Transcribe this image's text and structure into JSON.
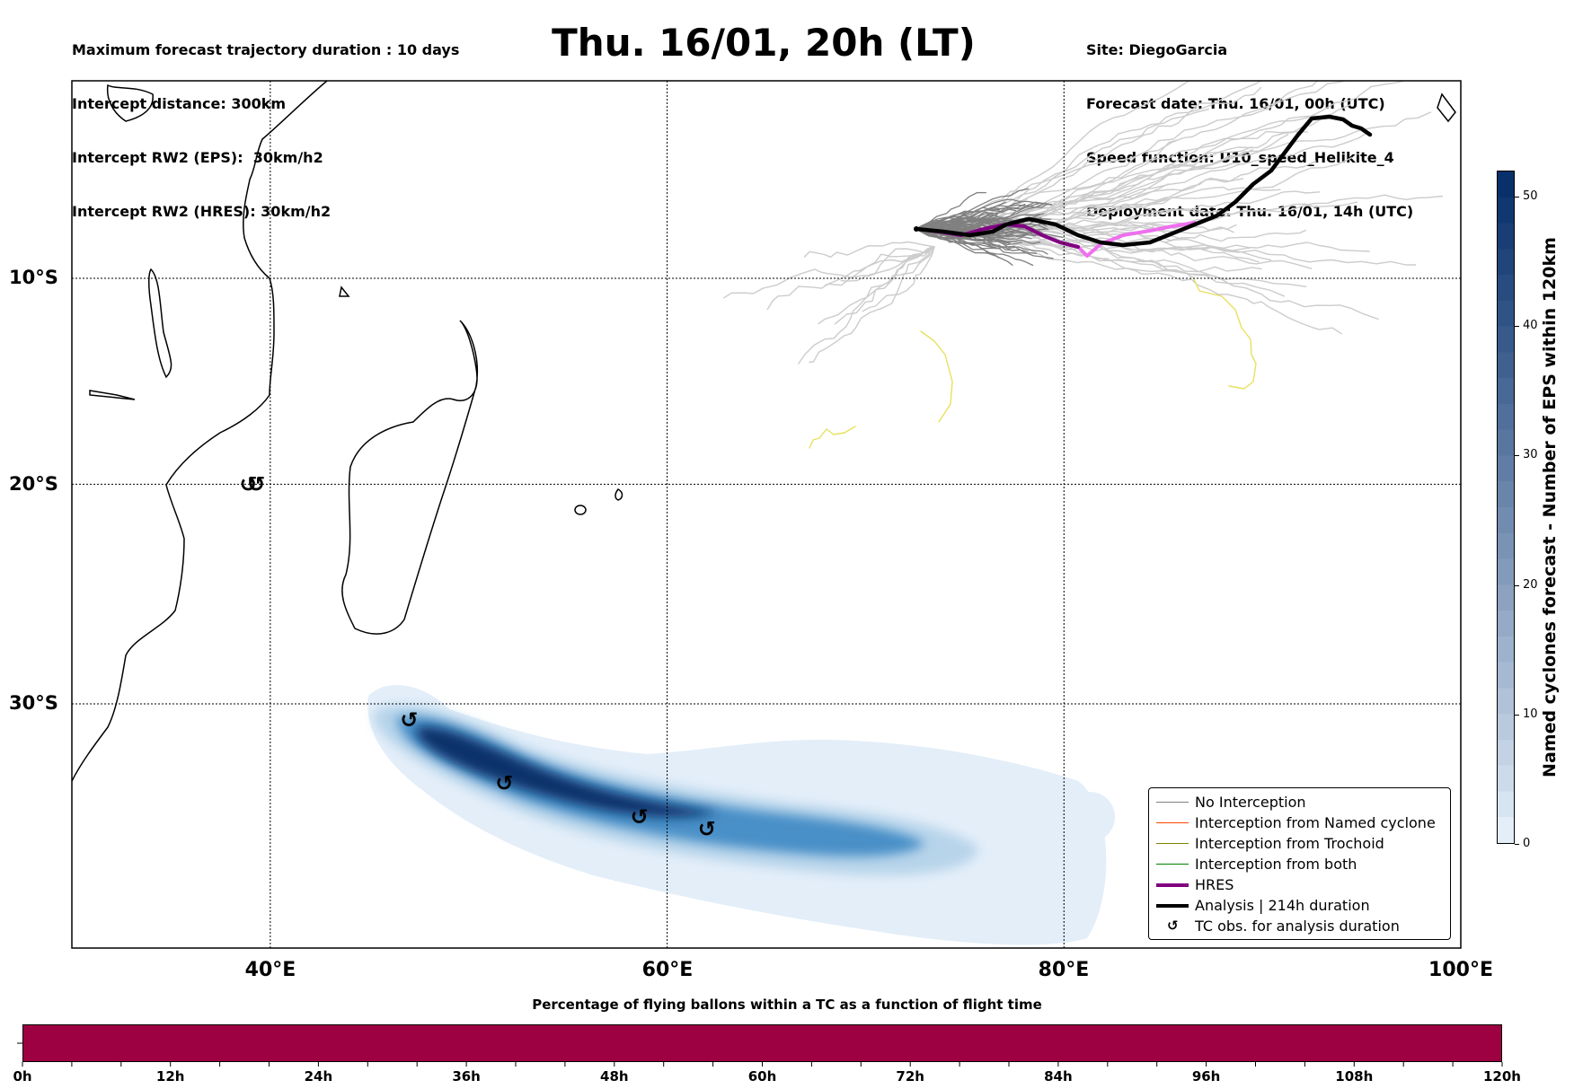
{
  "header": {
    "title": "Thu. 16/01, 20h (LT)",
    "left_info": [
      "Maximum forecast trajectory duration : 10 days",
      "Intercept distance: 300km",
      "Intercept RW2 (EPS):  30km/h2",
      "Intercept RW2 (HRES): 30km/h2"
    ],
    "right_info": [
      "Site: DiegoGarcia",
      "Forecast date: Thu. 16/01, 00h (UTC)",
      "Speed function: U10_speed_Helikite_4",
      "Deployment date: Thu. 16/01, 14h (UTC)"
    ]
  },
  "map": {
    "lon_range": [
      30,
      100
    ],
    "lat_range": [
      -0.5,
      -40.5
    ],
    "lat_labels": [
      {
        "value": -10,
        "label": "10°S"
      },
      {
        "value": -20,
        "label": "20°S"
      },
      {
        "value": -30,
        "label": "30°S"
      }
    ],
    "lon_labels": [
      {
        "value": 40,
        "label": "40°E"
      },
      {
        "value": 60,
        "label": "60°E"
      },
      {
        "value": 80,
        "label": "80°E"
      },
      {
        "value": 100,
        "label": "100°E"
      }
    ],
    "site": {
      "name": "DiegoGarcia",
      "lon": 72.4,
      "lat": -7.3
    },
    "tc_obs": [
      {
        "lon": 38.9,
        "lat": -20.0
      },
      {
        "lon": 39.3,
        "lat": -20.0
      },
      {
        "lon": 47.0,
        "lat": -30.7
      },
      {
        "lon": 51.8,
        "lat": -33.4
      },
      {
        "lon": 58.6,
        "lat": -34.8
      },
      {
        "lon": 62.0,
        "lat": -35.3
      }
    ],
    "colors": {
      "no_interception": "#808080",
      "no_interception_light": "#cccccc",
      "named_cyclone": "#ff4500",
      "trochoid": "#808000",
      "both": "#008000",
      "hres": "#800080",
      "hres_light": "#ee6fee",
      "analysis": "#000000",
      "yellow_track": "#e8e060"
    }
  },
  "colorbar": {
    "label": "Named cyclones forecast - Number of EPS within 120km",
    "min": 0,
    "max": 52,
    "ticks": [
      "0",
      "10",
      "20",
      "30",
      "40",
      "50"
    ],
    "tick_values": [
      0,
      10,
      20,
      30,
      40,
      50
    ],
    "color_low": "#e3eef9",
    "color_high": "#08306b"
  },
  "legend": {
    "items": [
      {
        "label": "No Interception",
        "type": "thin",
        "color": "#808080"
      },
      {
        "label": "Interception from Named cyclone",
        "type": "thin",
        "color": "#ff4500"
      },
      {
        "label": "Interception from Trochoid",
        "type": "thin",
        "color": "#808000"
      },
      {
        "label": "Interception from both",
        "type": "thin",
        "color": "#008000"
      },
      {
        "label": "HRES",
        "type": "thick",
        "color": "#800080"
      },
      {
        "label": "Analysis | 214h duration",
        "type": "thick",
        "color": "#000000"
      },
      {
        "label": "TC obs. for analysis duration",
        "type": "symbol",
        "symbol": "↺",
        "color": "#000000"
      }
    ]
  },
  "time_bar": {
    "title": "Percentage of flying ballons within a TC as a function of flight time",
    "fill_fraction": 1.0,
    "fill_color": "#9e0142",
    "range_hours": [
      0,
      120
    ],
    "ticks": [
      "0h",
      "12h",
      "24h",
      "36h",
      "48h",
      "60h",
      "72h",
      "84h",
      "96h",
      "108h",
      "120h"
    ]
  }
}
